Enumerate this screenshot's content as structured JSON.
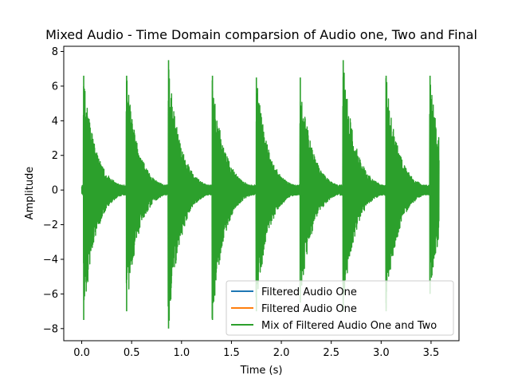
{
  "chart_data": {
    "type": "line",
    "title": "Mixed Audio - Time Domain comparsion of Audio one, Two and Final",
    "xlabel": "Time (s)",
    "ylabel": "Amplitude",
    "xlim": [
      -0.18,
      3.78
    ],
    "ylim": [
      -8.7,
      8.3
    ],
    "x_ticks": [
      0.0,
      0.5,
      1.0,
      1.5,
      2.0,
      2.5,
      3.0,
      3.5
    ],
    "x_tick_labels": [
      "0.0",
      "0.5",
      "1.0",
      "1.5",
      "2.0",
      "2.5",
      "3.0",
      "3.5"
    ],
    "y_ticks": [
      -8,
      -6,
      -4,
      -2,
      0,
      2,
      4,
      6,
      8
    ],
    "y_tick_labels": [
      "−8",
      "−6",
      "−4",
      "−2",
      "0",
      "2",
      "4",
      "6",
      "8"
    ],
    "legend_position": "lower right",
    "grid": false,
    "series": [
      {
        "name": "Filtered Audio One",
        "color": "#1f77b4",
        "onsets": [],
        "peaks_pos": [],
        "peaks_neg": []
      },
      {
        "name": "Filtered Audio One",
        "color": "#ff7f0e",
        "onsets": [],
        "peaks_pos": [],
        "peaks_neg": []
      },
      {
        "name": "Mix of Filtered Audio One and Two",
        "color": "#2ca02c",
        "x_start": 0.0,
        "x_end": 3.58,
        "onsets": [
          0.02,
          0.45,
          0.87,
          1.31,
          1.75,
          2.19,
          2.62,
          3.05,
          3.49
        ],
        "peaks_pos": [
          6.6,
          6.6,
          7.5,
          6.6,
          6.5,
          6.5,
          7.5,
          6.6,
          6.6
        ],
        "peaks_neg": [
          -7.5,
          -7.0,
          -8.0,
          -7.5,
          -7.0,
          -6.5,
          -7.0,
          -7.0,
          -6.0
        ],
        "decay_s": 0.12,
        "noise_floor": 0.3
      }
    ]
  }
}
